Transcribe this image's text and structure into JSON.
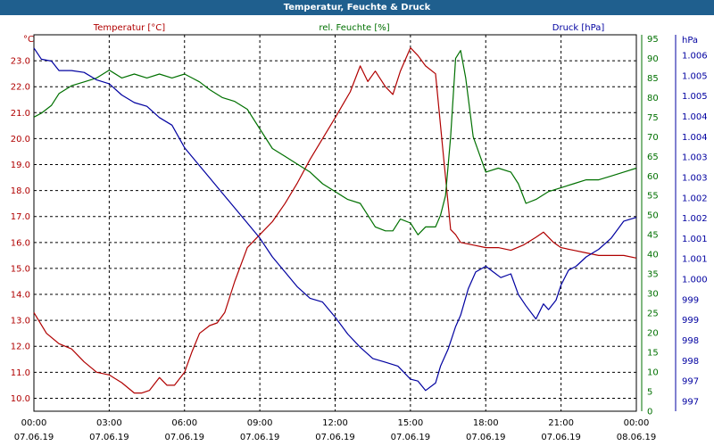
{
  "window_title": "Temperatur, Feuchte & Druck",
  "colors": {
    "temperature": "#b00000",
    "humidity": "#007000",
    "pressure": "#0000a0",
    "grid": "#000000",
    "titlebar": "#1f5f8e"
  },
  "chart_data": {
    "type": "line",
    "title": "Temperatur, Feuchte & Druck",
    "grid": true,
    "x_ticks": [
      {
        "time": "00:00",
        "date": "07.06.19"
      },
      {
        "time": "03:00",
        "date": "07.06.19"
      },
      {
        "time": "06:00",
        "date": "07.06.19"
      },
      {
        "time": "09:00",
        "date": "07.06.19"
      },
      {
        "time": "12:00",
        "date": "07.06.19"
      },
      {
        "time": "15:00",
        "date": "07.06.19"
      },
      {
        "time": "18:00",
        "date": "07.06.19"
      },
      {
        "time": "21:00",
        "date": "07.06.19"
      },
      {
        "time": "00:00",
        "date": "08.06.19"
      }
    ],
    "x_range_hours": [
      0,
      24
    ],
    "axes": {
      "temperature": {
        "label": "Temperatur [°C]",
        "unit": "°C",
        "range": [
          9.5,
          24.0
        ],
        "ticks": [
          "10.0",
          "11.0",
          "12.0",
          "13.0",
          "14.0",
          "15.0",
          "16.0",
          "17.0",
          "18.0",
          "19.0",
          "20.0",
          "21.0",
          "22.0",
          "23.0"
        ]
      },
      "humidity": {
        "label": "rel. Feuchte [%]",
        "unit": "%",
        "range": [
          0,
          96
        ],
        "ticks": [
          "0",
          "5",
          "10",
          "15",
          "20",
          "25",
          "30",
          "35",
          "40",
          "45",
          "50",
          "55",
          "60",
          "65",
          "70",
          "75",
          "80",
          "85",
          "90",
          "95"
        ]
      },
      "pressure": {
        "label": "Druck [hPa]",
        "unit": "hPa",
        "ticks": [
          "997",
          "997",
          "998",
          "998",
          "999",
          "999",
          "1.000",
          "1.001",
          "1.001",
          "1.002",
          "1.002",
          "1.003",
          "1.003",
          "1.004",
          "1.004",
          "1.005",
          "1.005",
          "1.006"
        ]
      }
    },
    "series": [
      {
        "name": "Temperatur [°C]",
        "axis": "temperature",
        "color": "#b00000",
        "x": [
          0,
          0.5,
          1,
          1.5,
          2,
          2.5,
          3,
          3.5,
          4,
          4.3,
          4.6,
          5,
          5.3,
          5.6,
          6,
          6.3,
          6.6,
          7,
          7.3,
          7.6,
          8,
          8.5,
          9,
          9.5,
          10,
          10.5,
          11,
          11.5,
          12,
          12.3,
          12.6,
          13,
          13.3,
          13.6,
          14,
          14.3,
          14.6,
          15,
          15.3,
          15.6,
          16,
          16.3,
          16.6,
          16.8,
          17,
          17.5,
          18,
          18.5,
          19,
          19.5,
          20,
          20.3,
          20.7,
          21,
          21.5,
          22,
          22.5,
          23,
          23.5,
          24
        ],
        "values": [
          13.3,
          12.5,
          12.1,
          11.9,
          11.4,
          11.0,
          10.9,
          10.6,
          10.2,
          10.2,
          10.3,
          10.8,
          10.5,
          10.5,
          11.0,
          11.8,
          12.5,
          12.8,
          12.9,
          13.3,
          14.5,
          15.8,
          16.3,
          16.8,
          17.5,
          18.3,
          19.2,
          20.0,
          20.8,
          21.3,
          21.8,
          22.8,
          22.2,
          22.6,
          22.0,
          21.7,
          22.6,
          23.5,
          23.2,
          22.8,
          22.5,
          19.5,
          16.5,
          16.3,
          16.0,
          15.9,
          15.8,
          15.8,
          15.7,
          15.9,
          16.2,
          16.4,
          16.0,
          15.8,
          15.7,
          15.6,
          15.5,
          15.5,
          15.5,
          15.4
        ]
      },
      {
        "name": "rel. Feuchte [%]",
        "axis": "humidity",
        "color": "#007000",
        "x": [
          0,
          0.3,
          0.7,
          1,
          1.5,
          2,
          2.5,
          3,
          3.5,
          4,
          4.5,
          5,
          5.5,
          6,
          6.3,
          6.6,
          7,
          7.5,
          8,
          8.5,
          9,
          9.5,
          10,
          10.5,
          11,
          11.5,
          12,
          12.5,
          13,
          13.3,
          13.6,
          14,
          14.3,
          14.6,
          15,
          15.3,
          15.6,
          16,
          16.2,
          16.4,
          16.6,
          16.8,
          17,
          17.2,
          17.5,
          18,
          18.5,
          19,
          19.3,
          19.6,
          20,
          20.5,
          21,
          21.5,
          22,
          22.5,
          23,
          23.5,
          24
        ],
        "values": [
          75,
          76,
          78,
          81,
          83,
          84,
          85,
          87,
          85,
          86,
          85,
          86,
          85,
          86,
          85,
          84,
          82,
          80,
          79,
          77,
          72,
          67,
          65,
          63,
          61,
          58,
          56,
          54,
          53,
          50,
          47,
          46,
          46,
          49,
          48,
          45,
          47,
          47,
          50,
          55,
          70,
          90,
          92,
          85,
          70,
          61,
          62,
          61,
          58,
          53,
          54,
          56,
          57,
          58,
          59,
          59,
          60,
          61,
          62
        ]
      },
      {
        "name": "Druck [hPa]",
        "axis": "pressure",
        "color": "#0000a0",
        "x": [
          0,
          0.3,
          0.7,
          1,
          1.5,
          2,
          2.5,
          3,
          3.5,
          4,
          4.5,
          5,
          5.5,
          6,
          6.5,
          7,
          7.5,
          8,
          8.5,
          9,
          9.5,
          10,
          10.5,
          11,
          11.5,
          12,
          12.5,
          13,
          13.5,
          14,
          14.5,
          15,
          15.3,
          15.6,
          16,
          16.2,
          16.5,
          16.8,
          17,
          17.3,
          17.6,
          18,
          18.3,
          18.6,
          19,
          19.3,
          19.6,
          20,
          20.3,
          20.5,
          20.8,
          21,
          21.3,
          21.6,
          22,
          22.5,
          23,
          23.5,
          24
        ],
        "values": [
          0.965,
          0.935,
          0.93,
          0.905,
          0.905,
          0.9,
          0.88,
          0.87,
          0.84,
          0.82,
          0.81,
          0.78,
          0.76,
          0.7,
          0.66,
          0.62,
          0.58,
          0.54,
          0.5,
          0.46,
          0.41,
          0.37,
          0.33,
          0.3,
          0.29,
          0.25,
          0.205,
          0.17,
          0.14,
          0.13,
          0.12,
          0.085,
          0.08,
          0.055,
          0.075,
          0.12,
          0.165,
          0.225,
          0.255,
          0.325,
          0.37,
          0.385,
          0.37,
          0.355,
          0.365,
          0.31,
          0.28,
          0.245,
          0.285,
          0.27,
          0.295,
          0.335,
          0.375,
          0.385,
          0.41,
          0.43,
          0.46,
          0.505,
          0.515
        ]
      }
    ]
  }
}
